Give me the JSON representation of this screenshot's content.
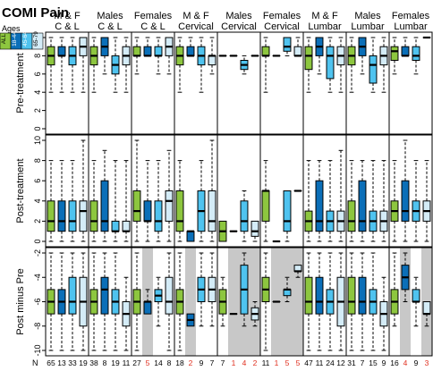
{
  "chart_data": {
    "type": "box",
    "title": "COMI Pain",
    "legend": {
      "title": "Ages",
      "items": [
        {
          "label": "ALL",
          "color": "#8dc63f"
        },
        {
          "label": "18-44",
          "color": "#0b6fb8"
        },
        {
          "label": "45-64",
          "color": "#4fc3ef"
        },
        {
          "label": "65-79",
          "color": "#d4ecf7"
        }
      ]
    },
    "colors": {
      "ALL": "#8dc63f",
      "18-44": "#0b6fb8",
      "45-64": "#4fc3ef",
      "65-79": "#d4ecf7",
      "shade": "#c8c8c8",
      "red": "#e03020"
    },
    "groups": [
      {
        "line1": "M & F",
        "line2": "C & L"
      },
      {
        "line1": "Males",
        "line2": "C & L"
      },
      {
        "line1": "Females",
        "line2": "C & L"
      },
      {
        "line1": "M & F",
        "line2": "Cervical"
      },
      {
        "line1": "Males",
        "line2": "Cervical"
      },
      {
        "line1": "Females",
        "line2": "Cervical"
      },
      {
        "line1": "M & F",
        "line2": "Lumbar"
      },
      {
        "line1": "Males",
        "line2": "Lumbar"
      },
      {
        "line1": "Females",
        "line2": "Lumbar"
      }
    ],
    "n_label": "N",
    "n_values": [
      [
        "65",
        "13",
        "33",
        "19"
      ],
      [
        "38",
        "8",
        "19",
        "11"
      ],
      [
        "27",
        "5",
        "14",
        "8"
      ],
      [
        "18",
        "2",
        "9",
        "7"
      ],
      [
        "7",
        "1",
        "4",
        "2"
      ],
      [
        "11",
        "1",
        "5",
        "5"
      ],
      [
        "47",
        "11",
        "24",
        "12"
      ],
      [
        "31",
        "7",
        "15",
        "9"
      ],
      [
        "16",
        "4",
        "9",
        "3"
      ]
    ],
    "n_red": [
      [
        false,
        false,
        false,
        false
      ],
      [
        false,
        false,
        false,
        false
      ],
      [
        false,
        true,
        false,
        false
      ],
      [
        false,
        true,
        false,
        false
      ],
      [
        false,
        true,
        true,
        true
      ],
      [
        false,
        true,
        true,
        true
      ],
      [
        false,
        false,
        false,
        false
      ],
      [
        false,
        false,
        false,
        false
      ],
      [
        false,
        true,
        false,
        true
      ]
    ],
    "shaded": [
      [
        false,
        false,
        false,
        false
      ],
      [
        false,
        false,
        false,
        false
      ],
      [
        false,
        true,
        false,
        false
      ],
      [
        false,
        true,
        false,
        false
      ],
      [
        false,
        true,
        true,
        true
      ],
      [
        false,
        true,
        true,
        true
      ],
      [
        false,
        false,
        false,
        false
      ],
      [
        false,
        false,
        false,
        false
      ],
      [
        false,
        true,
        false,
        true
      ]
    ],
    "panels": [
      {
        "ylabel": "Pre-treatment",
        "ylim": [
          0,
          10
        ],
        "yticks": [
          0,
          2,
          4,
          6,
          8,
          10
        ],
        "shade_all": false,
        "boxes": [
          [
            [
              4,
              7,
              8,
              9,
              10
            ],
            [
              4,
              8,
              8,
              9,
              10
            ],
            [
              4,
              7,
              8,
              9,
              10
            ],
            [
              4,
              8,
              9,
              10,
              10
            ]
          ],
          [
            [
              4,
              7,
              8,
              9,
              10
            ],
            [
              6,
              8,
              9,
              10,
              10
            ],
            [
              4,
              6,
              7,
              8,
              10
            ],
            [
              4,
              7,
              8,
              9,
              10
            ]
          ],
          [
            [
              6,
              8,
              8,
              9,
              10
            ],
            [
              8,
              8,
              8,
              9,
              10
            ],
            [
              6,
              8,
              8,
              9,
              10
            ],
            [
              6,
              8,
              9,
              10,
              10
            ]
          ],
          [
            [
              4,
              7,
              8,
              9,
              10
            ],
            [
              8,
              8,
              8,
              9,
              10
            ],
            [
              4,
              7,
              8,
              9,
              10
            ],
            [
              6,
              7,
              8,
              8,
              10
            ]
          ],
          [
            [
              8,
              8,
              8,
              8,
              8
            ],
            [
              8,
              8,
              8,
              8,
              8
            ],
            [
              6,
              6.5,
              7,
              7.5,
              8
            ],
            [
              8,
              8,
              8,
              8,
              8
            ]
          ],
          [
            [
              4,
              8,
              8,
              9,
              10
            ],
            [
              8,
              8,
              8,
              8,
              8
            ],
            [
              8,
              8.5,
              9,
              10,
              10
            ],
            [
              8,
              8,
              8,
              9,
              10
            ]
          ],
          [
            [
              4,
              6.5,
              8,
              9,
              10
            ],
            [
              6,
              8,
              9,
              10,
              10
            ],
            [
              4,
              5.5,
              8,
              9,
              10
            ],
            [
              4,
              7,
              8,
              9,
              10
            ]
          ],
          [
            [
              4,
              7,
              8,
              9,
              10
            ],
            [
              6,
              8,
              9,
              10,
              10
            ],
            [
              4,
              5,
              7,
              8,
              10
            ],
            [
              4,
              7,
              8,
              9,
              10
            ]
          ],
          [
            [
              6,
              7.5,
              8.5,
              9,
              10
            ],
            [
              8,
              8,
              8,
              9,
              10
            ],
            [
              6,
              7.5,
              8,
              9,
              10
            ],
            [
              10,
              10,
              10,
              10,
              10
            ]
          ]
        ]
      },
      {
        "ylabel": "Post-treatment",
        "ylim": [
          0,
          10
        ],
        "yticks": [
          0,
          2,
          4,
          6,
          8,
          10
        ],
        "shade_all": false,
        "boxes": [
          [
            [
              0,
              1,
              2,
              4,
              8
            ],
            [
              0,
              1,
              2,
              4,
              8
            ],
            [
              0,
              1,
              2,
              4,
              8
            ],
            [
              0,
              1,
              3,
              4,
              10
            ]
          ],
          [
            [
              0,
              1,
              2,
              4,
              8
            ],
            [
              0,
              1,
              2,
              6,
              9
            ],
            [
              0,
              1,
              1,
              2,
              8
            ],
            [
              0,
              1,
              1,
              2,
              8
            ]
          ],
          [
            [
              0,
              2,
              3,
              5,
              10
            ],
            [
              0,
              2,
              2,
              4,
              8
            ],
            [
              0,
              1,
              2,
              4,
              8
            ],
            [
              0,
              2,
              4,
              5,
              9
            ]
          ],
          [
            [
              0,
              1,
              2,
              5,
              8
            ],
            [
              0,
              0,
              1,
              1,
              1
            ],
            [
              0,
              1,
              3,
              5,
              8
            ],
            [
              0,
              1,
              2,
              5,
              10
            ]
          ],
          [
            [
              0,
              0,
              1,
              2,
              2
            ],
            [
              1,
              1,
              1,
              1,
              1
            ],
            [
              0,
              1,
              2,
              4,
              5
            ],
            [
              0,
              0.5,
              1,
              2,
              2
            ]
          ],
          [
            [
              0,
              2,
              5,
              5,
              8
            ],
            [
              0,
              0,
              0,
              0,
              0
            ],
            [
              0,
              1,
              2,
              5,
              5
            ],
            [
              5,
              5,
              5,
              5,
              5
            ]
          ],
          [
            [
              0,
              1,
              2,
              3,
              8
            ],
            [
              0,
              1,
              2,
              6,
              8
            ],
            [
              0,
              1,
              2,
              3,
              8
            ],
            [
              0,
              1,
              2,
              3,
              9
            ]
          ],
          [
            [
              0,
              1,
              2,
              4,
              8
            ],
            [
              0,
              1,
              2,
              6,
              8
            ],
            [
              0,
              1,
              2,
              3,
              8
            ],
            [
              0,
              1,
              2,
              3,
              8
            ]
          ],
          [
            [
              0,
              2,
              3,
              4,
              8
            ],
            [
              0,
              2,
              3,
              6,
              10
            ],
            [
              0,
              2,
              3,
              4,
              8
            ],
            [
              0,
              2,
              3,
              4,
              8
            ]
          ]
        ]
      },
      {
        "ylabel": "Post minus Pre",
        "ylim": [
          -10,
          -2
        ],
        "yticks": [
          -10,
          -8,
          -6,
          -4,
          -2
        ],
        "shade_all": true,
        "boxes": [
          [
            [
              -10,
              -7,
              -6,
              -5,
              -2
            ],
            [
              -10,
              -7,
              -6,
              -5,
              -2
            ],
            [
              -10,
              -7,
              -6,
              -4,
              -2
            ],
            [
              -10,
              -8,
              -6,
              -4,
              -2
            ]
          ],
          [
            [
              -10,
              -7,
              -6,
              -5,
              -2
            ],
            [
              -10,
              -7,
              -5,
              -4,
              -2
            ],
            [
              -10,
              -7,
              -6,
              -5,
              -2
            ],
            [
              -10,
              -8,
              -7,
              -6,
              -4
            ]
          ],
          [
            [
              -10,
              -7,
              -6,
              -5,
              -2
            ],
            [
              -7,
              -7,
              -6,
              -6,
              -5
            ],
            [
              -8,
              -6,
              -5.5,
              -5,
              -4
            ],
            [
              -10,
              -7,
              -6,
              -4,
              -2
            ]
          ],
          [
            [
              -10,
              -7,
              -6,
              -5,
              -2
            ],
            [
              -8,
              -8,
              -7.5,
              -7,
              -7
            ],
            [
              -8,
              -6,
              -5,
              -4,
              -2
            ],
            [
              -8,
              -6,
              -5,
              -4,
              -2
            ]
          ],
          [
            [
              -8,
              -7,
              -6,
              -5,
              -4
            ],
            [
              -7,
              -7,
              -7,
              -7,
              -7
            ],
            [
              -8,
              -7,
              -5,
              -3,
              -2
            ],
            [
              -8,
              -7.5,
              -7,
              -6.5,
              -6
            ]
          ],
          [
            [
              -10,
              -6,
              -5,
              -4,
              -2
            ],
            [
              -6,
              -6,
              -6,
              -6,
              -6
            ],
            [
              -6,
              -5.5,
              -5,
              -5,
              -4
            ],
            [
              -4,
              -3.5,
              -3.5,
              -3,
              -3
            ]
          ],
          [
            [
              -10,
              -7,
              -6,
              -4,
              -2
            ],
            [
              -10,
              -7,
              -6,
              -4,
              -2
            ],
            [
              -10,
              -7,
              -6,
              -5,
              -2
            ],
            [
              -10,
              -8,
              -6,
              -4,
              -2
            ]
          ],
          [
            [
              -10,
              -7,
              -6,
              -4,
              -2
            ],
            [
              -10,
              -7,
              -6,
              -4,
              -2
            ],
            [
              -10,
              -7,
              -6,
              -5,
              -2
            ],
            [
              -10,
              -8,
              -7,
              -6,
              -4
            ]
          ],
          [
            [
              -8,
              -7,
              -6,
              -5,
              -2
            ],
            [
              -6,
              -5,
              -4,
              -3,
              -2
            ],
            [
              -8,
              -6,
              -6,
              -5,
              -4
            ],
            [
              -8,
              -7,
              -7,
              -6,
              -6
            ]
          ]
        ]
      }
    ]
  }
}
